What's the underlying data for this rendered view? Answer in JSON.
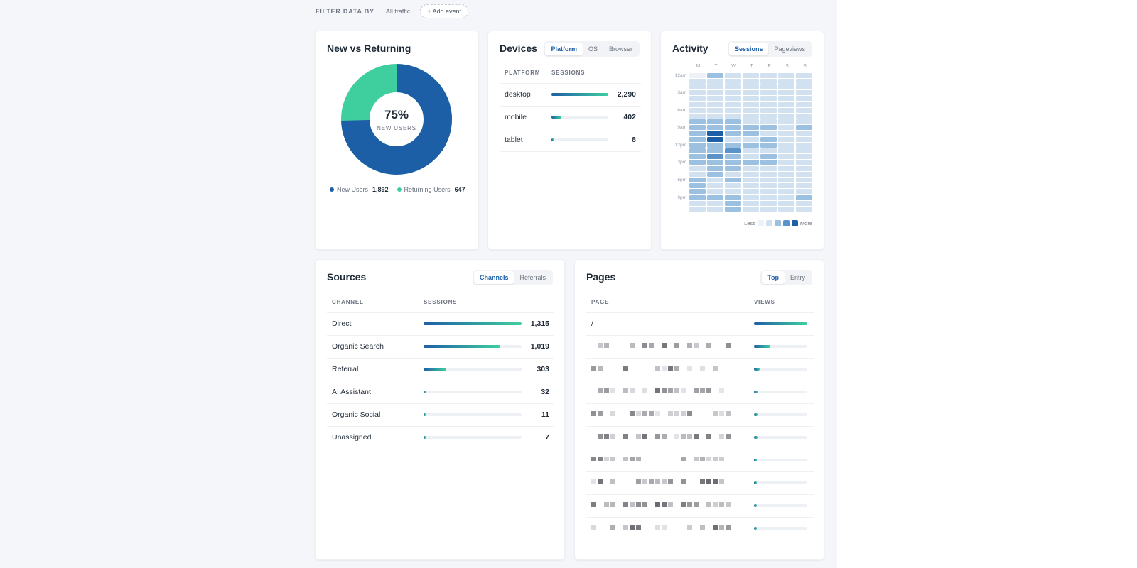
{
  "filter": {
    "label": "FILTER DATA BY",
    "value": "All traffic",
    "add_event": "+ Add event"
  },
  "new_vs_returning": {
    "title": "New vs Returning",
    "percent": "75%",
    "sublabel": "NEW USERS",
    "new_fraction": 0.745,
    "legend": [
      {
        "label": "New Users",
        "value": "1,892",
        "color": "#1d5fa6"
      },
      {
        "label": "Returning Users",
        "value": "647",
        "color": "#3fcf9f"
      }
    ]
  },
  "devices": {
    "title": "Devices",
    "tabs": [
      "Platform",
      "OS",
      "Browser"
    ],
    "active_tab": "Platform",
    "columns": [
      "PLATFORM",
      "SESSIONS"
    ],
    "rows": [
      {
        "name": "desktop",
        "value": "2,290",
        "fraction": 1.0
      },
      {
        "name": "mobile",
        "value": "402",
        "fraction": 0.18
      },
      {
        "name": "tablet",
        "value": "8",
        "fraction": 0.01
      }
    ]
  },
  "activity": {
    "title": "Activity",
    "tabs": [
      "Sessions",
      "Pageviews"
    ],
    "active_tab": "Sessions",
    "days": [
      "M",
      "T",
      "W",
      "T",
      "F",
      "S",
      "S"
    ],
    "hour_labels": {
      "0": "12am",
      "3": "3am",
      "6": "6am",
      "9": "9am",
      "12": "12pm",
      "15": "3pm",
      "18": "6pm",
      "21": "9pm"
    },
    "legend_less": "Less",
    "legend_more": "More",
    "colors": [
      "#eef2f8",
      "#d2e1f0",
      "#9cc0e0",
      "#5b93c8",
      "#1d5fa6"
    ],
    "levels": [
      [
        0,
        2,
        1,
        1,
        1,
        1,
        1
      ],
      [
        1,
        1,
        1,
        1,
        1,
        1,
        1
      ],
      [
        1,
        1,
        1,
        1,
        1,
        1,
        1
      ],
      [
        1,
        1,
        1,
        1,
        1,
        1,
        1
      ],
      [
        1,
        1,
        1,
        1,
        1,
        1,
        1
      ],
      [
        1,
        1,
        1,
        1,
        1,
        1,
        1
      ],
      [
        1,
        1,
        1,
        1,
        1,
        1,
        1
      ],
      [
        1,
        1,
        1,
        1,
        1,
        1,
        1
      ],
      [
        2,
        2,
        2,
        1,
        1,
        1,
        1
      ],
      [
        2,
        2,
        2,
        2,
        2,
        1,
        2
      ],
      [
        2,
        4,
        2,
        2,
        1,
        1,
        1
      ],
      [
        2,
        4,
        1,
        1,
        2,
        1,
        1
      ],
      [
        2,
        2,
        2,
        2,
        2,
        1,
        1
      ],
      [
        2,
        2,
        3,
        1,
        1,
        1,
        1
      ],
      [
        2,
        3,
        2,
        1,
        2,
        1,
        1
      ],
      [
        2,
        2,
        2,
        2,
        2,
        1,
        1
      ],
      [
        1,
        2,
        2,
        1,
        1,
        1,
        1
      ],
      [
        1,
        2,
        1,
        1,
        1,
        1,
        1
      ],
      [
        2,
        1,
        2,
        1,
        1,
        1,
        1
      ],
      [
        2,
        1,
        1,
        1,
        1,
        1,
        1
      ],
      [
        2,
        1,
        1,
        1,
        1,
        1,
        1
      ],
      [
        2,
        2,
        2,
        1,
        1,
        1,
        2
      ],
      [
        1,
        1,
        2,
        1,
        1,
        1,
        1
      ],
      [
        1,
        1,
        2,
        1,
        1,
        1,
        1
      ]
    ]
  },
  "sources": {
    "title": "Sources",
    "tabs": [
      "Channels",
      "Referrals"
    ],
    "active_tab": "Channels",
    "columns": [
      "CHANNEL",
      "SESSIONS"
    ],
    "rows": [
      {
        "name": "Direct",
        "value": "1,315",
        "fraction": 1.0
      },
      {
        "name": "Organic Search",
        "value": "1,019",
        "fraction": 0.78
      },
      {
        "name": "Referral",
        "value": "303",
        "fraction": 0.23
      },
      {
        "name": "AI Assistant",
        "value": "32",
        "fraction": 0.025
      },
      {
        "name": "Organic Social",
        "value": "11",
        "fraction": 0.01
      },
      {
        "name": "Unassigned",
        "value": "7",
        "fraction": 0.006
      }
    ]
  },
  "pages": {
    "title": "Pages",
    "tabs": [
      "Top",
      "Entry"
    ],
    "active_tab": "Top",
    "columns": [
      "PAGE",
      "VIEWS"
    ],
    "first_page": "/",
    "bar_fractions": [
      1.0,
      0.3,
      0.1,
      0.07,
      0.07,
      0.07,
      0.04,
      0.04,
      0.04,
      0.04
    ]
  }
}
